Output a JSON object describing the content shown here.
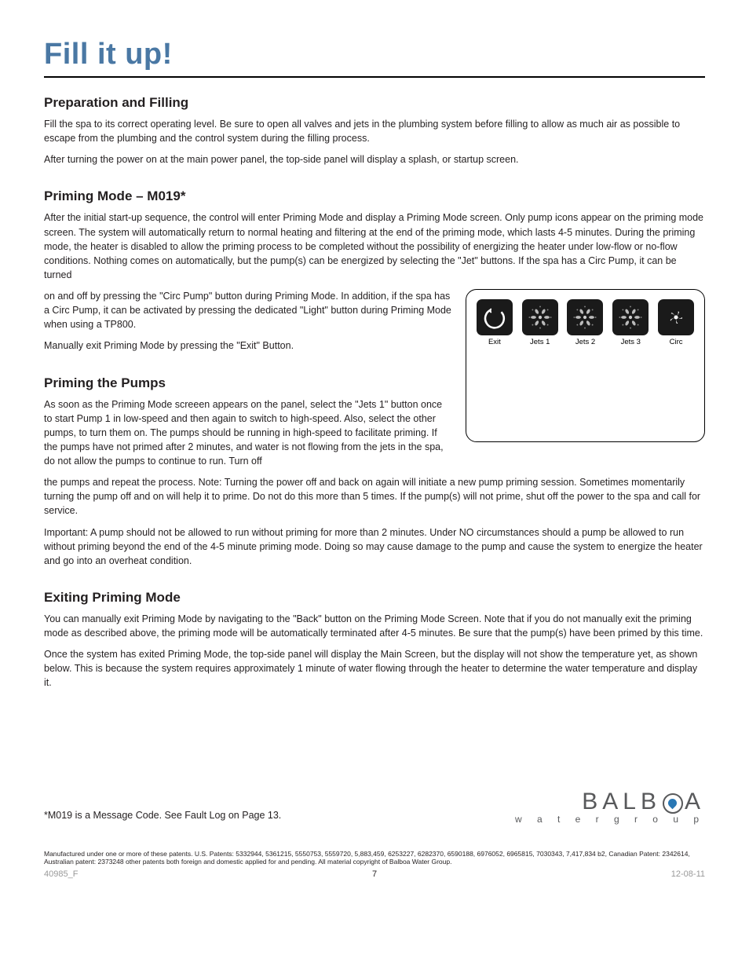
{
  "title": "Fill it up!",
  "sections": {
    "prep": {
      "heading": "Preparation and Filling",
      "p1": "Fill the spa to its correct operating level. Be sure to open all valves and jets in the plumbing system before filling to allow as much air as possible to escape from the plumbing and the control system during the filling process.",
      "p2": "After turning the power on at the main power panel, the top-side panel will display a splash, or startup screen."
    },
    "priming_mode": {
      "heading": "Priming Mode – M019*",
      "p1": "After the initial start-up sequence, the control will enter Priming Mode and display a Priming Mode screen. Only pump icons appear on the priming mode screen. The system will automatically return to normal heating and filtering at the end of the priming mode, which lasts 4-5 minutes. During the priming mode, the heater is disabled to allow the priming process to be completed without the possibility of energizing the heater under low-flow or no-flow conditions. Nothing comes on automatically, but the pump(s) can be energized by selecting the \"Jet\" buttons.  If the spa has a Circ Pump, it can be turned",
      "p2": "on and off by pressing the \"Circ Pump\" button during Priming Mode. In addition, if the spa has a Circ Pump, it can be activated by pressing the dedicated \"Light\" button during Priming Mode when using a TP800.",
      "p3": "Manually exit Priming Mode by pressing the \"Exit\" Button."
    },
    "priming_pumps": {
      "heading": "Priming the Pumps",
      "p1": "As soon as the Priming Mode screeen appears on the panel, select the \"Jets 1\" button once to start Pump 1 in low-speed and then again to switch to high-speed. Also, select the other pumps, to turn them on. The pumps should be running in high-speed to facilitate priming. If the pumps have not primed after 2 minutes, and water is not flowing from the jets in the spa, do not allow the pumps to continue to run. Turn off",
      "p2": "the pumps and repeat the process. Note: Turning the power off and back on again will initiate a new pump priming session. Sometimes momentarily turning the pump off and on will help it to prime. Do not do this more than 5 times. If the pump(s) will not prime, shut off the power to the spa and call for service.",
      "p3": "Important: A pump should not be allowed to run without priming for more than 2 minutes. Under NO circumstances should a pump be allowed to run without priming beyond the end of the 4-5 minute priming mode. Doing so may cause damage to the pump and cause the system to energize the heater and go into an overheat condition."
    },
    "exiting": {
      "heading": "Exiting Priming Mode",
      "p1": "You can manually exit Priming Mode by navigating to the \"Back\" button on the Priming Mode Screen. Note that if you do not manually exit the priming mode as described above, the priming mode will be automatically terminated after 4-5 minutes. Be sure that the pump(s) have been primed by this time.",
      "p2": "Once the system has exited Priming Mode, the top-side panel will display the Main Screen, but the display will not show the temperature yet, as shown below. This is because the system requires approximately 1 minute of water flowing through the heater to determine the water temperature and display it."
    }
  },
  "panel_buttons": [
    {
      "label": "Exit",
      "icon": "exit"
    },
    {
      "label": "Jets 1",
      "icon": "jets"
    },
    {
      "label": "Jets 2",
      "icon": "jets"
    },
    {
      "label": "Jets 3",
      "icon": "jets"
    },
    {
      "label": "Circ",
      "icon": "circ"
    }
  ],
  "footnote": "*M019 is a Message Code. See Fault Log on Page 13.",
  "logo": {
    "brand": "BALBOA",
    "sub": "w a t e r   g r o u p"
  },
  "legal": "Manufactured under one or more of these patents.  U.S. Patents: 5332944, 5361215, 5550753, 5559720, 5,883,459, 6253227, 6282370, 6590188, 6976052, 6965815, 7030343, 7,417,834 b2, Canadian Patent: 2342614, Australian patent: 2373248 other patents both foreign and domestic applied for and pending.  All material copyright of Balboa Water Group.",
  "footer": {
    "left": "40985_F",
    "page": "7",
    "right": "12-08-11"
  },
  "colors": {
    "title": "#4a78a4",
    "button_bg": "#1a1a1a",
    "logo_gray": "#58595b",
    "logo_blue": "#2a78b5"
  }
}
